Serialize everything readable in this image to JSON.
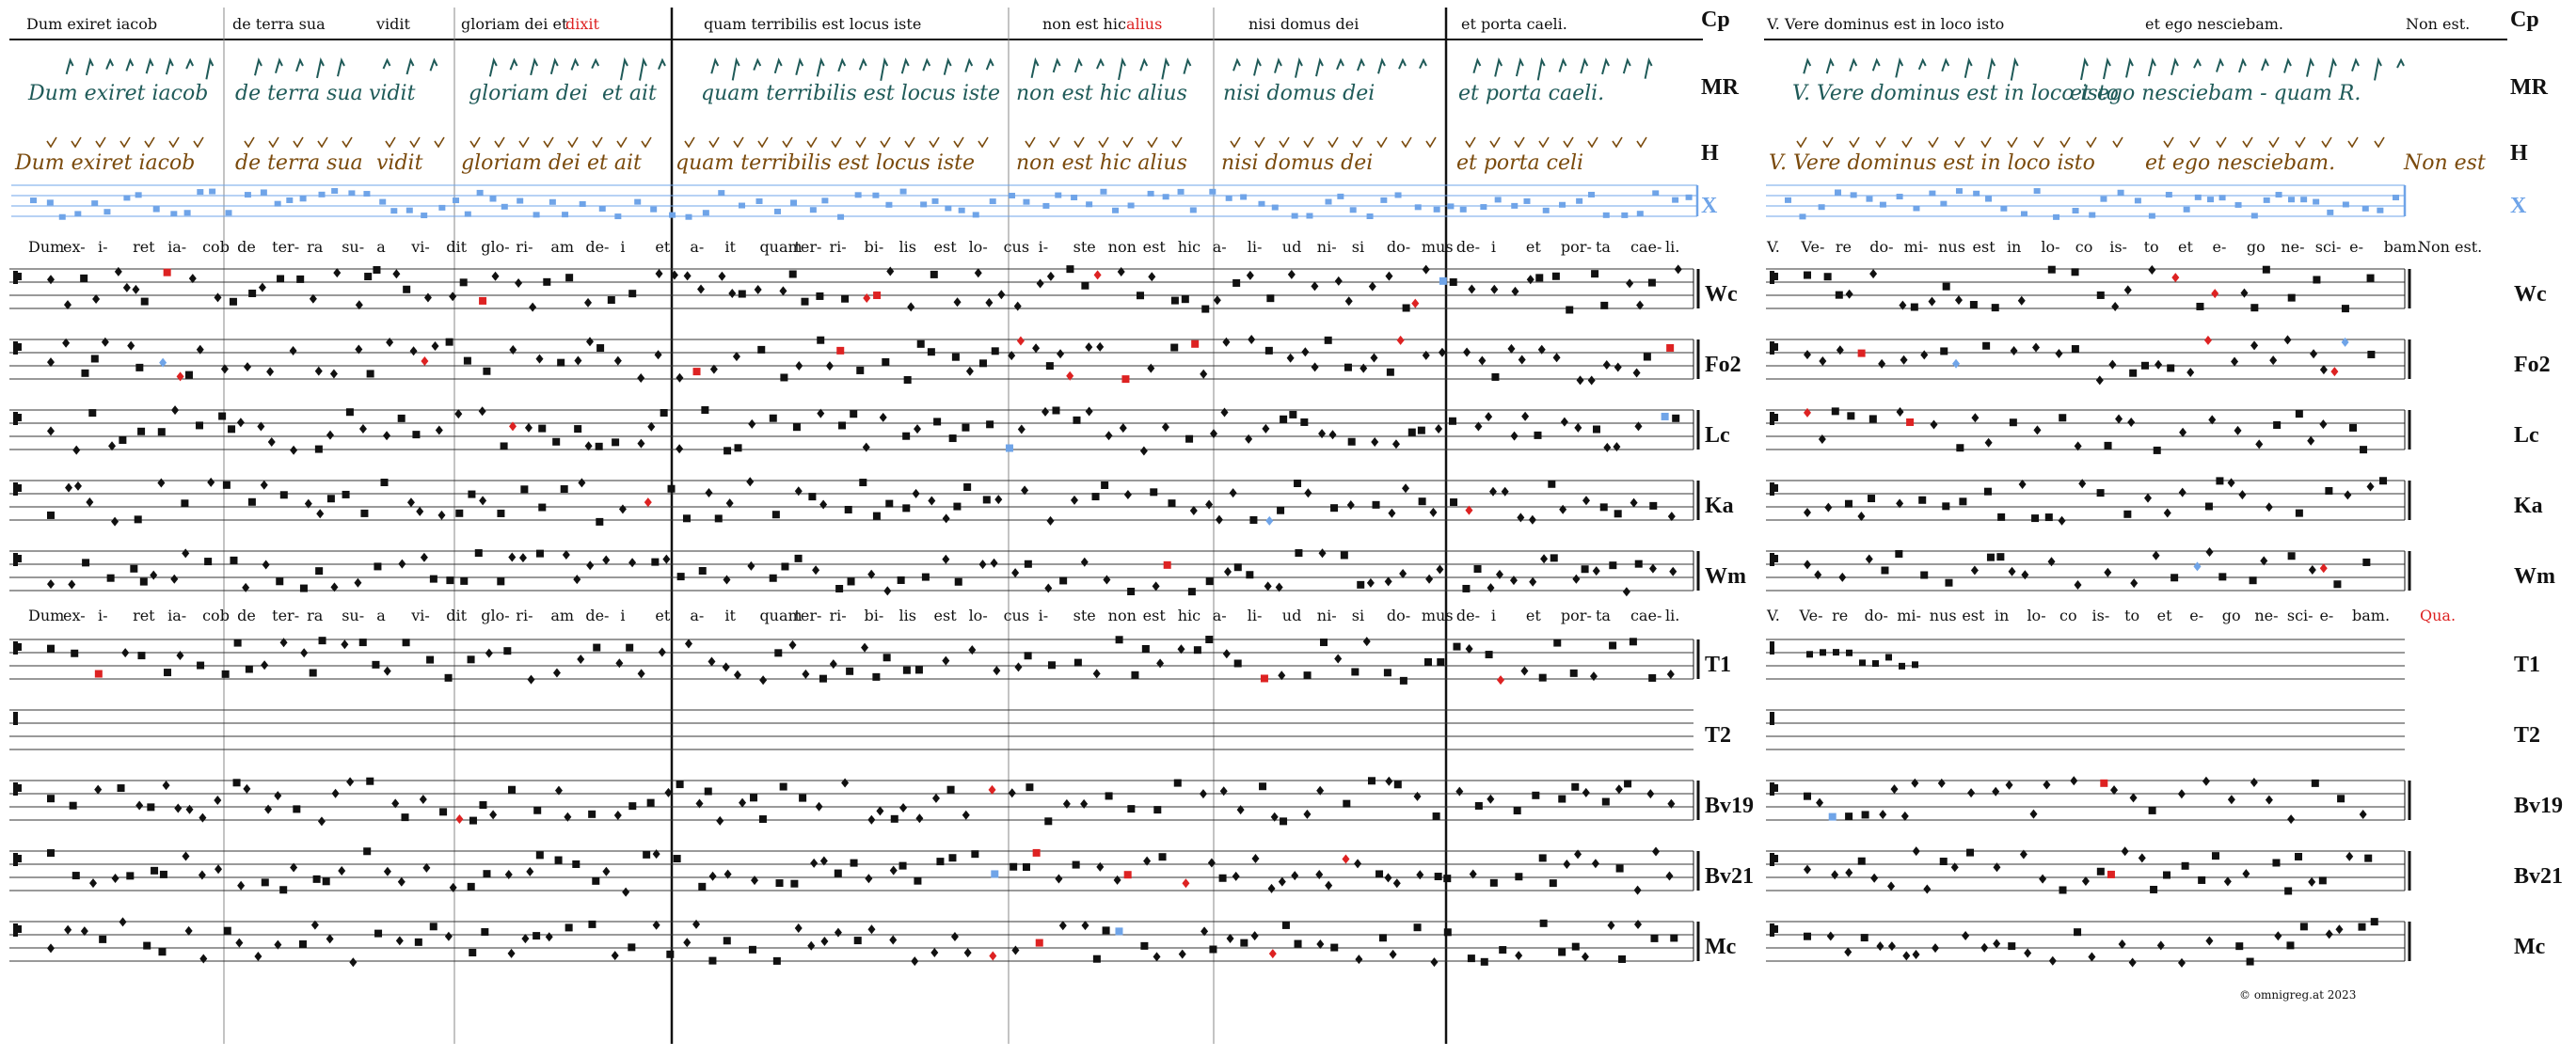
{
  "colors": {
    "ink": "#111111",
    "variant": "#dd2222",
    "x_blue": "#6fa4e8",
    "mr_teal": "#1f5a58",
    "h_brown": "#7a4a0c",
    "green": "#4a8a52",
    "staff": "#333333"
  },
  "left_block": {
    "text_segments": [
      {
        "text": "Dum exiret iacob"
      },
      {
        "text": "de terra sua"
      },
      {
        "text": "vidit"
      },
      {
        "text": "gloriam dei et"
      },
      {
        "text": "dixit",
        "highlight": true
      },
      {
        "text": "quam terribilis est locus iste"
      },
      {
        "text": "non est hic"
      },
      {
        "text": "alius",
        "highlight": true
      },
      {
        "text": "nisi domus dei"
      },
      {
        "text": "et porta caeli."
      }
    ],
    "mr_segments": [
      "Dum exiret iacob",
      "de terra sua",
      "vidit",
      "gloriam dei",
      "et ait",
      "quam terribilis est locus iste",
      "non est hic alius",
      "nisi domus dei",
      "et porta caeli."
    ],
    "h_segments": [
      "Dum exiret iacob",
      "de terra sua",
      "vidit",
      "gloriam dei et ait",
      "quam terribilis est locus iste",
      "non est hic alius",
      "nisi domus dei",
      "et porta celi"
    ],
    "lyrics_a": [
      "Dum",
      "ex-",
      "i-",
      "ret",
      "ia-",
      "cob",
      "de",
      "ter-",
      "ra",
      "su-",
      "a",
      "vi-",
      "dit",
      "glo-",
      "ri-",
      "am",
      "de-",
      "i",
      "et",
      "a-",
      "it",
      "quam",
      "ter-",
      "ri-",
      "bi-",
      "lis",
      "est",
      "lo-",
      "cus",
      "i-",
      "ste",
      "non",
      "est",
      "hic",
      "a-",
      "li-",
      "ud",
      "ni-",
      "si",
      "do-",
      "mus",
      "de-",
      "i",
      "et",
      "por-",
      "ta",
      "cae-",
      "li."
    ],
    "lyrics_b": [
      "Dum",
      "ex-",
      "i-",
      "ret",
      "ia-",
      "cob",
      "de",
      "ter-",
      "ra",
      "su-",
      "a",
      "vi-",
      "dit",
      "glo-",
      "ri-",
      "am",
      "de-",
      "i",
      "et",
      "a-",
      "it",
      "quam",
      "ter-",
      "ri-",
      "bi-",
      "lis",
      "est",
      "lo-",
      "cus",
      "i-",
      "ste",
      "non",
      "est",
      "hic",
      "a-",
      "li-",
      "ud",
      "ni-",
      "si",
      "do-",
      "mus",
      "de-",
      "i",
      "et",
      "por-",
      "ta",
      "cae-",
      "li."
    ]
  },
  "right_block": {
    "text_segments": [
      {
        "text": "V. Vere dominus est in loco isto"
      },
      {
        "text": "et ego nesciebam."
      },
      {
        "text": "Non est."
      }
    ],
    "mr_segments": [
      "V. Vere dominus est in loco isto",
      "et ego nesciebam - quam R."
    ],
    "h_segments": [
      "V. Vere dominus est in loco isto",
      "et ego nesciebam.",
      "Non est"
    ],
    "lyrics_a": [
      "V.",
      "Ve-",
      "re",
      "do-",
      "mi-",
      "nus",
      "est",
      "in",
      "lo-",
      "co",
      "is-",
      "to",
      "et",
      "e-",
      "go",
      "ne-",
      "sci-",
      "e-",
      "bam.",
      "Non est."
    ],
    "lyrics_b": [
      "V.",
      "Ve-",
      "re",
      "do-",
      "mi-",
      "nus",
      "est",
      "in",
      "lo-",
      "co",
      "is-",
      "to",
      "et",
      "e-",
      "go",
      "ne-",
      "sci-",
      "e-",
      "bam."
    ],
    "lyrics_b_extra": "Qua."
  },
  "sigla": {
    "header": [
      "Cp",
      "MR",
      "H",
      "X"
    ],
    "staves_a": [
      "Wc",
      "Fo2",
      "Lc",
      "Ka",
      "Wm"
    ],
    "staves_b": [
      "T1",
      "T2",
      "Bv19",
      "Bv21",
      "Mc"
    ]
  },
  "copyright": "© omnigreg.at   2023"
}
